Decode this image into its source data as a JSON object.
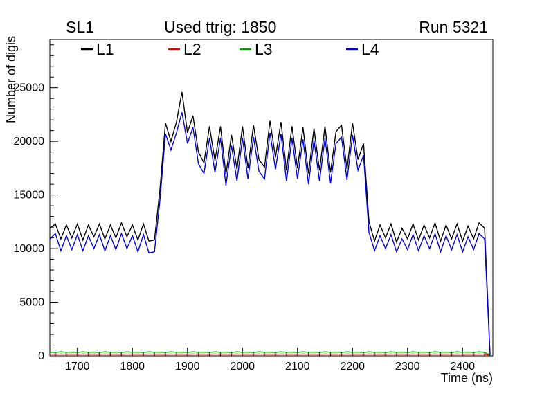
{
  "header": {
    "left": "SL1",
    "center": "Used ttrig: 1850",
    "right": "Run 5321"
  },
  "chart_data": {
    "type": "line",
    "title": "Used ttrig: 1850",
    "xlabel": "Time (ns)",
    "ylabel": "Number of digis",
    "xlim": [
      1650,
      2455
    ],
    "ylim": [
      0,
      29500
    ],
    "x_major_ticks": [
      1700,
      1800,
      1900,
      2000,
      2100,
      2200,
      2300,
      2400
    ],
    "x_minor_step": 20,
    "y_major_ticks": [
      0,
      5000,
      10000,
      15000,
      20000,
      25000
    ],
    "y_minor_step": 1000,
    "grid": false,
    "legend_position": "top-inside",
    "x": [
      1650,
      1660,
      1670,
      1680,
      1690,
      1700,
      1710,
      1720,
      1730,
      1740,
      1750,
      1760,
      1770,
      1780,
      1790,
      1800,
      1810,
      1820,
      1830,
      1840,
      1850,
      1860,
      1870,
      1880,
      1890,
      1900,
      1910,
      1920,
      1930,
      1940,
      1950,
      1960,
      1970,
      1980,
      1990,
      2000,
      2010,
      2020,
      2030,
      2040,
      2050,
      2060,
      2070,
      2080,
      2090,
      2100,
      2110,
      2120,
      2130,
      2140,
      2150,
      2160,
      2170,
      2180,
      2190,
      2200,
      2210,
      2220,
      2230,
      2240,
      2250,
      2260,
      2270,
      2280,
      2290,
      2300,
      2310,
      2320,
      2330,
      2340,
      2350,
      2360,
      2370,
      2380,
      2390,
      2400,
      2410,
      2420,
      2430,
      2440,
      2450
    ],
    "series": [
      {
        "name": "L1",
        "color": "#000000",
        "values": [
          11900,
          12300,
          10900,
          12200,
          11000,
          12300,
          10800,
          12200,
          11100,
          12300,
          10900,
          12200,
          11000,
          12400,
          11100,
          12200,
          10800,
          12300,
          10700,
          10800,
          15500,
          21700,
          20000,
          21800,
          24600,
          20800,
          22400,
          19000,
          18000,
          21400,
          18200,
          21400,
          16900,
          20600,
          17400,
          21400,
          17500,
          21500,
          18300,
          17600,
          21900,
          18500,
          21800,
          17300,
          21400,
          17500,
          21300,
          17000,
          21200,
          17300,
          21400,
          17100,
          20900,
          21500,
          17400,
          21700,
          18300,
          19800,
          12500,
          10700,
          12200,
          11000,
          12300,
          10600,
          11900,
          10900,
          12300,
          10800,
          12200,
          11000,
          12400,
          10700,
          12200,
          10900,
          12300,
          10700,
          12100,
          10900,
          12400,
          11900,
          100
        ]
      },
      {
        "name": "L2",
        "color": "#dd0000",
        "values": [
          160,
          140,
          170,
          150,
          160,
          140,
          170,
          150,
          160,
          140,
          170,
          150,
          160,
          140,
          170,
          150,
          160,
          140,
          170,
          150,
          160,
          140,
          170,
          150,
          160,
          140,
          170,
          150,
          160,
          140,
          170,
          150,
          160,
          140,
          170,
          150,
          160,
          140,
          170,
          150,
          160,
          140,
          170,
          150,
          160,
          140,
          170,
          150,
          160,
          140,
          170,
          150,
          160,
          140,
          170,
          150,
          160,
          140,
          170,
          150,
          160,
          140,
          170,
          150,
          160,
          140,
          170,
          150,
          160,
          140,
          170,
          150,
          160,
          140,
          170,
          150,
          160,
          140,
          170,
          150,
          60
        ]
      },
      {
        "name": "L3",
        "color": "#009900",
        "values": [
          350,
          310,
          380,
          330,
          350,
          310,
          380,
          330,
          350,
          310,
          380,
          330,
          350,
          310,
          380,
          330,
          350,
          310,
          380,
          330,
          350,
          310,
          380,
          330,
          350,
          310,
          380,
          330,
          350,
          310,
          380,
          330,
          350,
          310,
          380,
          330,
          350,
          310,
          380,
          330,
          350,
          310,
          380,
          330,
          350,
          310,
          380,
          330,
          350,
          310,
          380,
          330,
          350,
          310,
          380,
          330,
          350,
          310,
          380,
          330,
          350,
          310,
          380,
          330,
          350,
          310,
          380,
          330,
          350,
          310,
          380,
          330,
          350,
          310,
          380,
          330,
          350,
          310,
          380,
          330,
          80
        ]
      },
      {
        "name": "L4",
        "color": "#0000dd",
        "values": [
          10900,
          11400,
          9800,
          11200,
          9900,
          11300,
          9800,
          11200,
          10000,
          11300,
          9800,
          11200,
          9900,
          11400,
          10000,
          11200,
          9700,
          11300,
          9600,
          9700,
          14500,
          20700,
          19200,
          20800,
          22700,
          19800,
          21300,
          17900,
          17000,
          20300,
          17100,
          20300,
          15900,
          19600,
          16300,
          20300,
          16500,
          20400,
          17200,
          16500,
          20800,
          17400,
          20700,
          16300,
          20300,
          16500,
          20200,
          16000,
          20100,
          16300,
          20300,
          16100,
          19800,
          20400,
          16400,
          20600,
          17300,
          18700,
          11500,
          9800,
          11200,
          10000,
          11300,
          9700,
          10900,
          9900,
          11300,
          9800,
          11200,
          10000,
          11400,
          9700,
          11200,
          9900,
          11300,
          9700,
          11100,
          9900,
          11400,
          10900,
          50
        ]
      }
    ]
  }
}
